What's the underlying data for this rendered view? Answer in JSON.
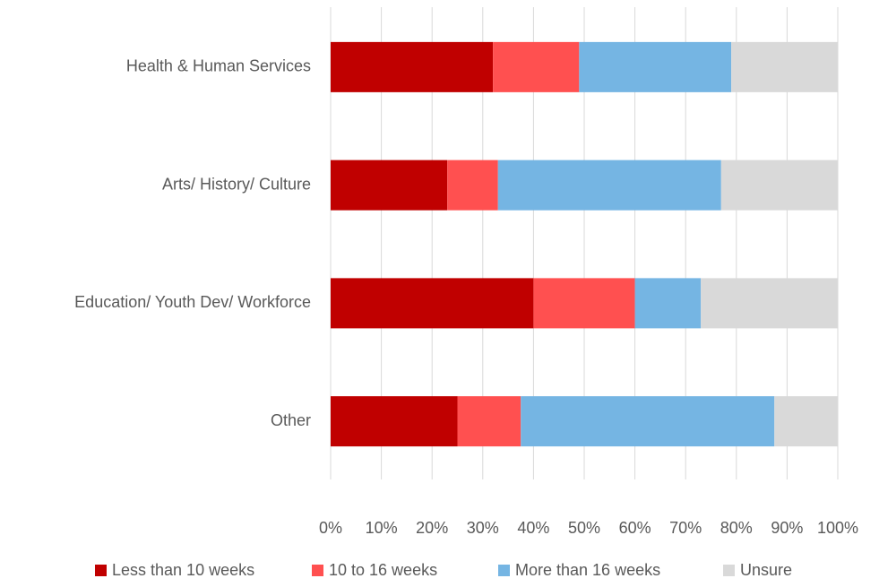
{
  "chart_data": {
    "type": "stacked_bar_horizontal",
    "categories": [
      "Health & Human Services",
      "Arts/ History/ Culture",
      "Education/ Youth Dev/ Workforce",
      "Other"
    ],
    "series": [
      {
        "name": "Less than 10 weeks",
        "color": "#c00000",
        "values": [
          32,
          23,
          40,
          25
        ]
      },
      {
        "name": "10 to 16 weeks",
        "color": "#ff5050",
        "values": [
          17,
          10,
          20,
          12.5
        ]
      },
      {
        "name": "More than 16 weeks",
        "color": "#75b5e3",
        "values": [
          30,
          44,
          13,
          50
        ]
      },
      {
        "name": "Unsure",
        "color": "#d9d9d9",
        "values": [
          21,
          23,
          27,
          12.5
        ]
      }
    ],
    "xlim": [
      0,
      100
    ],
    "xticks": [
      {
        "value": 0,
        "label": "0%"
      },
      {
        "value": 10,
        "label": "10%"
      },
      {
        "value": 20,
        "label": "20%"
      },
      {
        "value": 30,
        "label": "30%"
      },
      {
        "value": 40,
        "label": "40%"
      },
      {
        "value": 50,
        "label": "50%"
      },
      {
        "value": 60,
        "label": "60%"
      },
      {
        "value": 70,
        "label": "70%"
      },
      {
        "value": 80,
        "label": "80%"
      },
      {
        "value": 90,
        "label": "90%"
      },
      {
        "value": 100,
        "label": "100%"
      }
    ],
    "grid": true,
    "legend": "bottom"
  }
}
